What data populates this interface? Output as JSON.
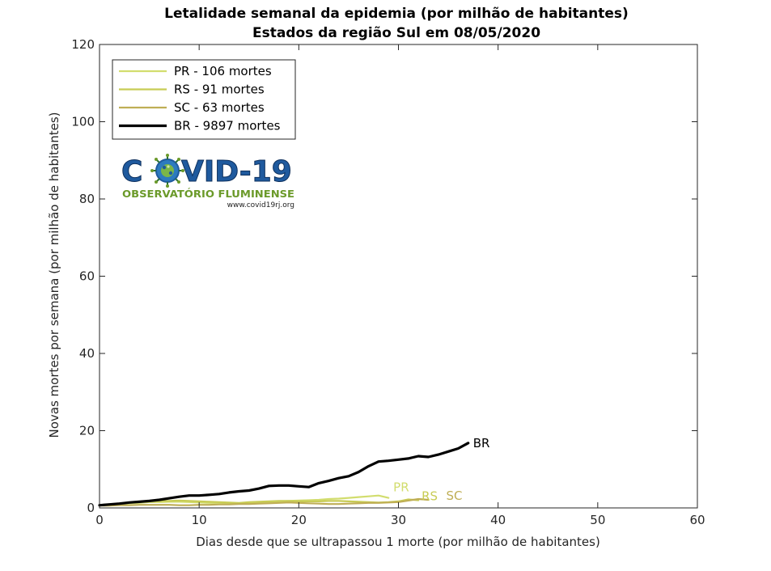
{
  "chart_data": {
    "type": "line",
    "title": "Letalidade semanal da epidemia (por milhão de habitantes)",
    "subtitle": "Estados da região Sul  em 08/05/2020",
    "xlabel": "Dias desde que se ultrapassou 1 morte (por milhão de habitantes)",
    "ylabel": "Novas mortes por semana (por milhão de habitantes)",
    "xlim": [
      0,
      60
    ],
    "ylim": [
      0,
      120
    ],
    "xticks": [
      0,
      10,
      20,
      30,
      40,
      50,
      60
    ],
    "yticks": [
      0,
      20,
      40,
      60,
      80,
      100,
      120
    ],
    "grid": false,
    "legend_position": "top-left",
    "series": [
      {
        "name": "PR - 106 mortes",
        "end_label": "PR",
        "color": "#d2dd6e",
        "x": [
          0,
          1,
          2,
          3,
          4,
          5,
          6,
          7,
          8,
          9,
          10,
          11,
          12,
          13,
          14,
          15,
          16,
          17,
          18,
          19,
          20,
          21,
          22,
          23,
          24,
          25,
          26,
          27,
          28,
          29
        ],
        "y": [
          0.8,
          0.9,
          1.0,
          1.2,
          1.3,
          1.5,
          1.5,
          1.6,
          1.6,
          1.5,
          1.4,
          1.3,
          1.3,
          1.2,
          1.1,
          1.2,
          1.3,
          1.5,
          1.7,
          1.8,
          1.9,
          2.0,
          2.1,
          2.3,
          2.4,
          2.6,
          2.8,
          3.0,
          3.2,
          2.6
        ]
      },
      {
        "name": "RS - 91 mortes",
        "end_label": "RS",
        "color": "#c8cc55",
        "x": [
          0,
          1,
          2,
          3,
          4,
          5,
          6,
          7,
          8,
          9,
          10,
          11,
          12,
          13,
          14,
          15,
          16,
          17,
          18,
          19,
          20,
          21,
          22,
          23,
          24,
          25,
          26,
          27,
          28,
          29,
          30,
          31,
          32
        ],
        "y": [
          0.7,
          0.9,
          1.1,
          1.3,
          1.5,
          1.7,
          1.8,
          1.8,
          1.9,
          1.8,
          1.7,
          1.6,
          1.5,
          1.4,
          1.3,
          1.5,
          1.6,
          1.7,
          1.8,
          1.8,
          1.7,
          1.7,
          1.7,
          1.8,
          1.8,
          1.7,
          1.6,
          1.5,
          1.4,
          1.5,
          1.7,
          2.2,
          2.0
        ]
      },
      {
        "name": "SC - 63 mortes",
        "end_label": "SC",
        "color": "#bfae55",
        "x": [
          0,
          1,
          2,
          3,
          4,
          5,
          6,
          7,
          8,
          9,
          10,
          11,
          12,
          13,
          14,
          15,
          16,
          17,
          18,
          19,
          20,
          21,
          22,
          23,
          24,
          25,
          26,
          27,
          28,
          29,
          30,
          31,
          32,
          33
        ],
        "y": [
          0.6,
          0.6,
          0.7,
          0.7,
          0.8,
          0.8,
          0.8,
          0.8,
          0.7,
          0.7,
          0.8,
          0.8,
          0.9,
          0.9,
          1.0,
          1.0,
          1.1,
          1.2,
          1.3,
          1.4,
          1.3,
          1.2,
          1.1,
          1.0,
          1.0,
          1.1,
          1.2,
          1.3,
          1.3,
          1.4,
          1.5,
          1.9,
          2.3,
          2.1
        ]
      },
      {
        "name": "BR - 9897 mortes",
        "end_label": "BR",
        "color": "#000000",
        "x": [
          0,
          1,
          2,
          3,
          4,
          5,
          6,
          7,
          8,
          9,
          10,
          11,
          12,
          13,
          14,
          15,
          16,
          17,
          18,
          19,
          20,
          21,
          22,
          23,
          24,
          25,
          26,
          27,
          28,
          29,
          30,
          31,
          32,
          33,
          34,
          35,
          36,
          37
        ],
        "y": [
          0.7,
          0.9,
          1.1,
          1.4,
          1.6,
          1.8,
          2.1,
          2.5,
          2.9,
          3.2,
          3.2,
          3.4,
          3.6,
          4.0,
          4.3,
          4.5,
          5.0,
          5.7,
          5.8,
          5.8,
          5.6,
          5.4,
          6.4,
          7.0,
          7.7,
          8.2,
          9.3,
          10.8,
          12.0,
          12.2,
          12.5,
          12.8,
          13.4,
          13.2,
          13.8,
          14.6,
          15.4,
          16.8
        ]
      }
    ]
  },
  "logo": {
    "word_left": "C",
    "word_right": "VID-19",
    "subtitle": "OBSERVATÓRIO FLUMINENSE",
    "url": "www.covid19rj.org",
    "colors": {
      "blue": "#1f5a9e",
      "green": "#6b9a2a",
      "text_dark": "#222222"
    }
  }
}
